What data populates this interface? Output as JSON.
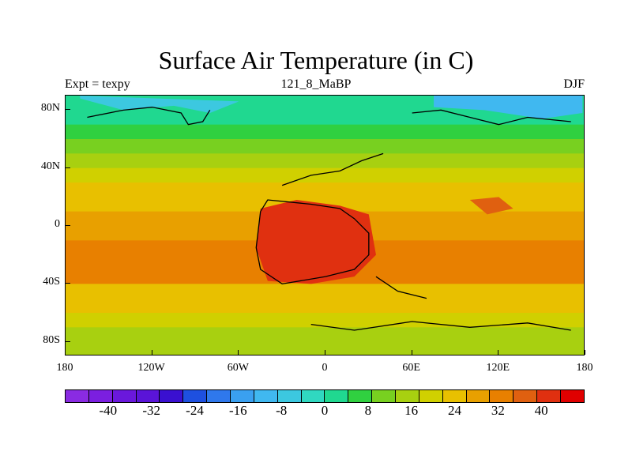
{
  "title": "Surface Air Temperature (in C)",
  "subtitle_left": "Expt = texpy",
  "subtitle_center": "121_8_MaBP",
  "subtitle_right": "DJF",
  "lat_labels": [
    {
      "text": "80N",
      "lat": 80
    },
    {
      "text": "40N",
      "lat": 40
    },
    {
      "text": "0",
      "lat": 0
    },
    {
      "text": "40S",
      "lat": -40
    },
    {
      "text": "80S",
      "lat": -80
    }
  ],
  "lon_labels": [
    {
      "text": "180",
      "lon": -180
    },
    {
      "text": "120W",
      "lon": -120
    },
    {
      "text": "60W",
      "lon": -60
    },
    {
      "text": "0",
      "lon": 0
    },
    {
      "text": "60E",
      "lon": 60
    },
    {
      "text": "120E",
      "lon": 120
    },
    {
      "text": "180",
      "lon": 180
    }
  ],
  "colorbar": {
    "colors": [
      "#8a2be2",
      "#7b1fe0",
      "#6a18dc",
      "#5a14d8",
      "#3a10d0",
      "#1e50e0",
      "#2f78ec",
      "#3aa0f0",
      "#40b8f0",
      "#3cc8e0",
      "#30d8c0",
      "#20d890",
      "#30d040",
      "#78d020",
      "#a8d010",
      "#d0d000",
      "#e8c000",
      "#e8a000",
      "#e88000",
      "#e06010",
      "#e03010",
      "#e00000"
    ],
    "labels": [
      "-40",
      "-32",
      "-24",
      "-16",
      "-8",
      "0",
      "8",
      "16",
      "24",
      "32",
      "40"
    ],
    "label_values": [
      -40,
      -32,
      -24,
      -16,
      -8,
      0,
      8,
      16,
      24,
      32,
      40
    ],
    "min": -48,
    "max": 48
  },
  "temperature_bands": [
    {
      "lat": 90,
      "value": 2
    },
    {
      "lat": 80,
      "value": 4
    },
    {
      "lat": 70,
      "value": 8
    },
    {
      "lat": 60,
      "value": 12
    },
    {
      "lat": 50,
      "value": 15
    },
    {
      "lat": 40,
      "value": 18
    },
    {
      "lat": 30,
      "value": 22
    },
    {
      "lat": 20,
      "value": 26
    },
    {
      "lat": 10,
      "value": 29
    },
    {
      "lat": 0,
      "value": 30
    },
    {
      "lat": -10,
      "value": 32
    },
    {
      "lat": -20,
      "value": 33
    },
    {
      "lat": -30,
      "value": 31
    },
    {
      "lat": -40,
      "value": 26
    },
    {
      "lat": -50,
      "value": 22
    },
    {
      "lat": -60,
      "value": 18
    },
    {
      "lat": -70,
      "value": 16
    },
    {
      "lat": -80,
      "value": 14
    },
    {
      "lat": -90,
      "value": 12
    }
  ],
  "features": [
    {
      "name": "north-cold-region",
      "value": -8,
      "polygon": [
        [
          -170,
          88
        ],
        [
          -140,
          80
        ],
        [
          -105,
          83
        ],
        [
          -80,
          78
        ],
        [
          -60,
          86
        ],
        [
          -170,
          90
        ]
      ]
    },
    {
      "name": "asia-cold-region",
      "value": -10,
      "polygon": [
        [
          75,
          82
        ],
        [
          110,
          80
        ],
        [
          150,
          74
        ],
        [
          178,
          78
        ],
        [
          178,
          90
        ],
        [
          75,
          90
        ]
      ]
    },
    {
      "name": "central-warm-region",
      "value": 42,
      "polygon": [
        [
          -45,
          12
        ],
        [
          -20,
          18
        ],
        [
          10,
          14
        ],
        [
          30,
          8
        ],
        [
          35,
          -20
        ],
        [
          20,
          -35
        ],
        [
          -10,
          -40
        ],
        [
          -40,
          -38
        ],
        [
          -48,
          -15
        ]
      ]
    },
    {
      "name": "east-warm-spot",
      "value": 38,
      "polygon": [
        [
          100,
          18
        ],
        [
          120,
          20
        ],
        [
          130,
          12
        ],
        [
          112,
          8
        ]
      ]
    }
  ],
  "coastlines": [
    [
      [
        -165,
        75
      ],
      [
        -140,
        80
      ],
      [
        -120,
        82
      ],
      [
        -100,
        78
      ],
      [
        -95,
        70
      ],
      [
        -85,
        72
      ],
      [
        -80,
        80
      ]
    ],
    [
      [
        -45,
        10
      ],
      [
        -40,
        18
      ],
      [
        -10,
        15
      ],
      [
        10,
        12
      ],
      [
        20,
        5
      ],
      [
        30,
        -5
      ],
      [
        30,
        -20
      ],
      [
        20,
        -30
      ],
      [
        0,
        -35
      ],
      [
        -30,
        -40
      ],
      [
        -45,
        -30
      ],
      [
        -48,
        -15
      ],
      [
        -45,
        10
      ]
    ],
    [
      [
        -30,
        28
      ],
      [
        -10,
        35
      ],
      [
        10,
        38
      ],
      [
        25,
        45
      ],
      [
        40,
        50
      ]
    ],
    [
      [
        60,
        78
      ],
      [
        80,
        80
      ],
      [
        100,
        75
      ],
      [
        120,
        70
      ],
      [
        140,
        75
      ],
      [
        170,
        72
      ]
    ],
    [
      [
        -10,
        -68
      ],
      [
        20,
        -72
      ],
      [
        60,
        -66
      ],
      [
        100,
        -70
      ],
      [
        140,
        -67
      ],
      [
        170,
        -72
      ]
    ],
    [
      [
        35,
        -35
      ],
      [
        50,
        -45
      ],
      [
        70,
        -50
      ]
    ]
  ]
}
